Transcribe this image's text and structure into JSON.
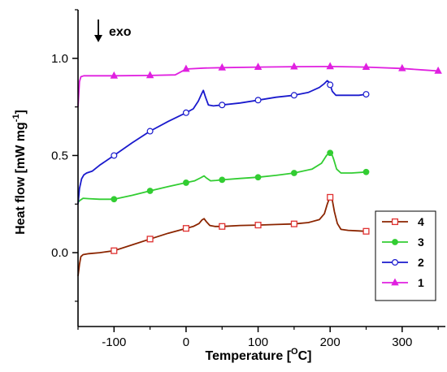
{
  "chart_data": {
    "type": "line",
    "xlabel": "Temperature [",
    "xlabel_sup": "O",
    "xlabel_tail": "C]",
    "ylabel": "Heat flow [mW mg",
    "ylabel_sup": "-1",
    "ylabel_tail": "]",
    "xlim": [
      -150,
      360
    ],
    "ylim": [
      -0.38,
      1.25
    ],
    "x_ticks": [
      -100,
      0,
      100,
      200,
      300
    ],
    "x_tick_labels": [
      "-100",
      "0",
      "100",
      "200",
      "300"
    ],
    "y_ticks": [
      0.0,
      0.5,
      1.0
    ],
    "y_tick_labels": [
      "0.0",
      "0.5",
      "1.0"
    ],
    "annotation": "exo",
    "legend_position": "right-middle",
    "series": [
      {
        "name": "4",
        "color": "#8B2500",
        "marker": "open-square",
        "marker_color": "#e03030",
        "marker_x": [
          -100,
          -50,
          0,
          50,
          100,
          150,
          200,
          250
        ],
        "points": [
          [
            -150,
            -0.12
          ],
          [
            -148,
            -0.06
          ],
          [
            -146,
            -0.02
          ],
          [
            -143,
            -0.01
          ],
          [
            -135,
            -0.005
          ],
          [
            -120,
            0.0
          ],
          [
            -100,
            0.01
          ],
          [
            -75,
            0.04
          ],
          [
            -50,
            0.07
          ],
          [
            -25,
            0.1
          ],
          [
            0,
            0.125
          ],
          [
            10,
            0.135
          ],
          [
            18,
            0.15
          ],
          [
            22,
            0.168
          ],
          [
            25,
            0.175
          ],
          [
            28,
            0.16
          ],
          [
            33,
            0.14
          ],
          [
            40,
            0.135
          ],
          [
            50,
            0.135
          ],
          [
            75,
            0.14
          ],
          [
            100,
            0.142
          ],
          [
            125,
            0.145
          ],
          [
            150,
            0.148
          ],
          [
            170,
            0.155
          ],
          [
            185,
            0.17
          ],
          [
            192,
            0.2
          ],
          [
            196,
            0.25
          ],
          [
            199,
            0.28
          ],
          [
            201,
            0.29
          ],
          [
            203,
            0.27
          ],
          [
            206,
            0.21
          ],
          [
            210,
            0.15
          ],
          [
            215,
            0.12
          ],
          [
            225,
            0.115
          ],
          [
            240,
            0.112
          ],
          [
            250,
            0.11
          ]
        ]
      },
      {
        "name": "3",
        "color": "#32CD32",
        "marker": "filled-circle",
        "marker_color": "#32CD32",
        "marker_x": [
          -100,
          -50,
          0,
          50,
          100,
          150,
          200,
          250
        ],
        "points": [
          [
            -150,
            0.26
          ],
          [
            -147,
            0.27
          ],
          [
            -143,
            0.28
          ],
          [
            -135,
            0.278
          ],
          [
            -120,
            0.275
          ],
          [
            -100,
            0.275
          ],
          [
            -75,
            0.295
          ],
          [
            -50,
            0.318
          ],
          [
            -25,
            0.34
          ],
          [
            0,
            0.36
          ],
          [
            12,
            0.37
          ],
          [
            20,
            0.385
          ],
          [
            25,
            0.395
          ],
          [
            28,
            0.385
          ],
          [
            34,
            0.37
          ],
          [
            42,
            0.372
          ],
          [
            50,
            0.375
          ],
          [
            75,
            0.382
          ],
          [
            100,
            0.388
          ],
          [
            125,
            0.398
          ],
          [
            150,
            0.41
          ],
          [
            175,
            0.43
          ],
          [
            188,
            0.46
          ],
          [
            195,
            0.5
          ],
          [
            199,
            0.515
          ],
          [
            202,
            0.51
          ],
          [
            205,
            0.48
          ],
          [
            209,
            0.43
          ],
          [
            215,
            0.41
          ],
          [
            230,
            0.41
          ],
          [
            250,
            0.415
          ]
        ]
      },
      {
        "name": "2",
        "color": "#1a1acd",
        "marker": "open-circle",
        "marker_color": "#1a1acd",
        "marker_x": [
          -100,
          -50,
          0,
          50,
          100,
          150,
          200,
          250
        ],
        "points": [
          [
            -150,
            0.25
          ],
          [
            -148,
            0.33
          ],
          [
            -145,
            0.38
          ],
          [
            -142,
            0.4
          ],
          [
            -138,
            0.41
          ],
          [
            -130,
            0.42
          ],
          [
            -120,
            0.45
          ],
          [
            -100,
            0.5
          ],
          [
            -75,
            0.565
          ],
          [
            -50,
            0.625
          ],
          [
            -25,
            0.675
          ],
          [
            0,
            0.72
          ],
          [
            10,
            0.74
          ],
          [
            17,
            0.78
          ],
          [
            22,
            0.82
          ],
          [
            24,
            0.835
          ],
          [
            27,
            0.8
          ],
          [
            31,
            0.76
          ],
          [
            38,
            0.755
          ],
          [
            50,
            0.76
          ],
          [
            75,
            0.77
          ],
          [
            100,
            0.785
          ],
          [
            125,
            0.8
          ],
          [
            150,
            0.81
          ],
          [
            170,
            0.825
          ],
          [
            185,
            0.85
          ],
          [
            192,
            0.87
          ],
          [
            196,
            0.885
          ],
          [
            199,
            0.875
          ],
          [
            203,
            0.83
          ],
          [
            208,
            0.81
          ],
          [
            220,
            0.81
          ],
          [
            240,
            0.81
          ],
          [
            250,
            0.815
          ]
        ]
      },
      {
        "name": "1",
        "color": "#E020E0",
        "marker": "filled-triangle",
        "marker_color": "#E020E0",
        "marker_x": [
          -100,
          -50,
          0,
          50,
          100,
          150,
          200,
          250,
          300,
          350
        ],
        "points": [
          [
            -150,
            0.75
          ],
          [
            -148,
            0.88
          ],
          [
            -146,
            0.905
          ],
          [
            -142,
            0.91
          ],
          [
            -120,
            0.91
          ],
          [
            -100,
            0.91
          ],
          [
            -50,
            0.912
          ],
          [
            -15,
            0.915
          ],
          [
            -5,
            0.935
          ],
          [
            0,
            0.945
          ],
          [
            25,
            0.95
          ],
          [
            50,
            0.952
          ],
          [
            100,
            0.955
          ],
          [
            150,
            0.957
          ],
          [
            200,
            0.958
          ],
          [
            250,
            0.955
          ],
          [
            300,
            0.948
          ],
          [
            330,
            0.94
          ],
          [
            350,
            0.935
          ]
        ]
      }
    ]
  }
}
